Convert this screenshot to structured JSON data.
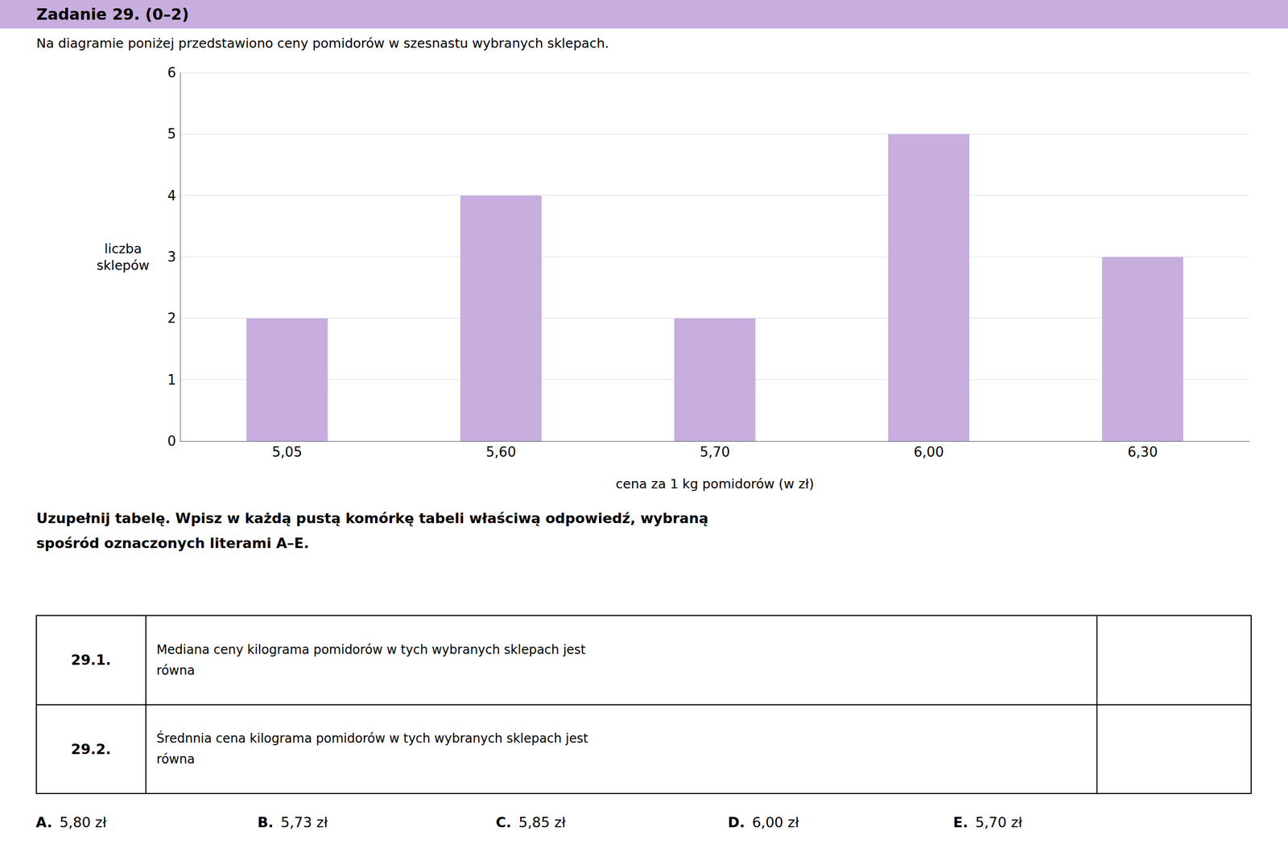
{
  "chart_data": {
    "type": "bar",
    "title": "Zadanie 29. (0–2)",
    "subtitle": "Na diagramie poniżej przedstawiono ceny pomidorów w szesnastu wybranych sklepach.",
    "categories": [
      "5,05",
      "5,60",
      "5,70",
      "6,00",
      "6,30"
    ],
    "values": [
      2,
      4,
      2,
      5,
      3
    ],
    "color": "#c8aede",
    "xlabel": "cena za 1 kg pomidorów (w zł)",
    "ylabel": "liczba\nsklepów",
    "ylim": [
      0,
      6
    ],
    "yticks": [
      0,
      1,
      2,
      3,
      4,
      5,
      6
    ],
    "grid": true,
    "annotations": [
      "Uzupełnij tabelę. Wpisz w każdą pustą komórkę tabeli właściwą odpowiedź, wybraną",
      "spośród oznaczonych literami A–E."
    ],
    "table": [
      {
        "label": "29.1.",
        "text": [
          "Mediana ceny kilograma pomidorów w tych wybranych sklepach jest",
          "równa"
        ]
      },
      {
        "label": "29.2.",
        "text": [
          "Średnnia cena kilograma pomidorów w tych wybranych sklepach jest",
          "równa"
        ]
      }
    ],
    "answers": [
      {
        "letter": "A.",
        "value": "5,80 zł"
      },
      {
        "letter": "B.",
        "value": "5,73 zł"
      },
      {
        "letter": "C.",
        "value": "5,85 zł"
      },
      {
        "letter": "D.",
        "value": "6,00 zł"
      },
      {
        "letter": "E.",
        "value": "5,70 zł"
      }
    ]
  }
}
